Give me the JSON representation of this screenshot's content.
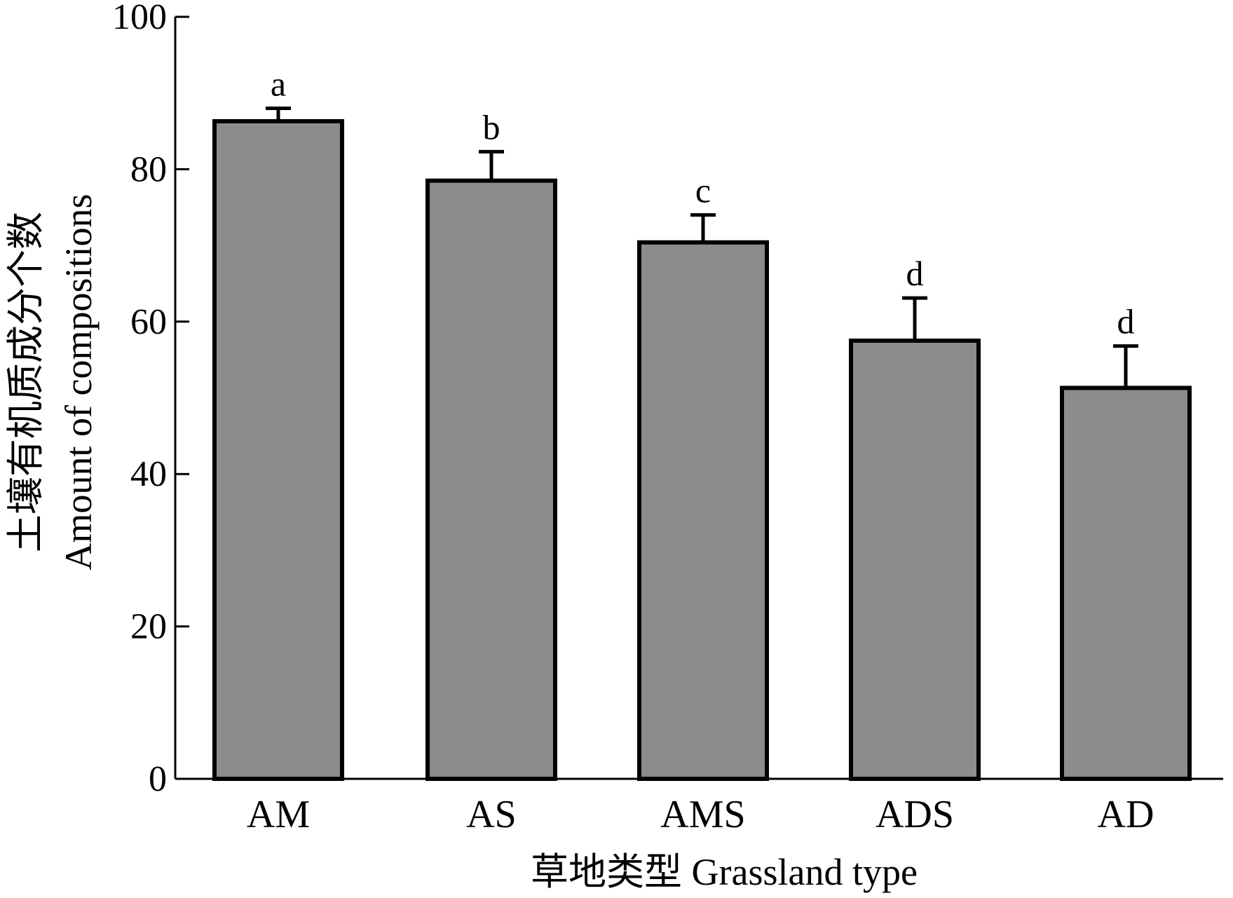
{
  "chart_data": {
    "type": "bar",
    "categories": [
      "AM",
      "AS",
      "AMS",
      "ADS",
      "AD"
    ],
    "values": [
      86.3,
      78.5,
      70.4,
      57.5,
      51.3
    ],
    "error_upper": [
      88.0,
      82.3,
      74.0,
      63.1,
      56.8
    ],
    "significance_letters": [
      "a",
      "b",
      "c",
      "d",
      "d"
    ],
    "ylim": [
      0,
      100
    ],
    "yticks": [
      0,
      20,
      40,
      60,
      80,
      100
    ],
    "ylabel_zh": "土壤有机质成分个数",
    "ylabel_en": "Amount of compositions",
    "xlabel": "草地类型 Grassland type",
    "bar_color": "#8c8c8c",
    "grid": false
  }
}
